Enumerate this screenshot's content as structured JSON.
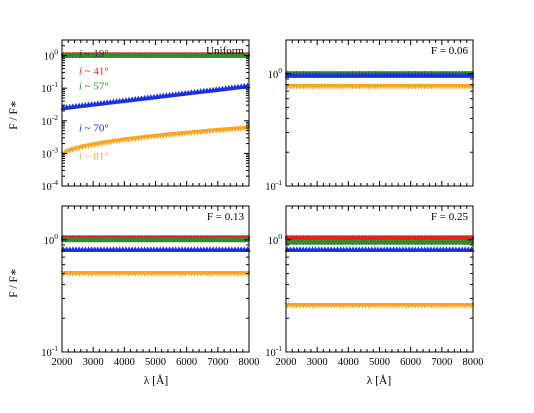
{
  "figure": {
    "ylabel_top": "F / F∗",
    "ylabel_bottom": "F / F∗",
    "xlabel": "λ [Å]"
  },
  "chart_data": [
    {
      "type": "line",
      "panel": "top-left",
      "annotation": "Uniform",
      "xlim": [
        2000,
        8000
      ],
      "ylim": [
        0.0001,
        3
      ],
      "yscale": "log",
      "xticks": [
        "2000",
        "3000",
        "4000",
        "5000",
        "6000",
        "7000",
        "8000"
      ],
      "xticks_shown": false,
      "yticks": [
        {
          "value": 1,
          "label": "10^0"
        },
        {
          "value": 0.1,
          "label": "10^-1"
        },
        {
          "value": 0.01,
          "label": "10^-2"
        },
        {
          "value": 0.001,
          "label": "10^-3"
        },
        {
          "value": 0.0001,
          "label": "10^-4"
        }
      ],
      "series": [
        {
          "name": "i ~ 19°",
          "color": "#333333",
          "marker": "circle",
          "y0": 1.05,
          "y1": 1.05
        },
        {
          "name": "i ~ 41°",
          "color": "#e8201a",
          "marker": "circle",
          "y0": 1.05,
          "y1": 1.05
        },
        {
          "name": "i ~ 57°",
          "color": "#2e8b2e",
          "marker": "circle",
          "y0": 1.0,
          "y1": 1.0
        },
        {
          "name": "i ~ 70°",
          "color": "#1a2ee8",
          "marker": "triangle-up",
          "y0": 0.025,
          "y1": 0.12,
          "log_interp": true
        },
        {
          "name": "i ~ 81°",
          "color": "#f5a623",
          "marker": "triangle-down",
          "y0": 0.0008,
          "y1": 0.006,
          "log_interp": true,
          "curve": "sqrt"
        }
      ]
    },
    {
      "type": "line",
      "panel": "top-right",
      "annotation": "F = 0.06",
      "xlim": [
        2000,
        8000
      ],
      "ylim": [
        0.1,
        2
      ],
      "yscale": "log",
      "xticks": [
        "2000",
        "3000",
        "4000",
        "5000",
        "6000",
        "7000",
        "8000"
      ],
      "xticks_shown": false,
      "yticks": [
        {
          "value": 1,
          "label": "10^0"
        },
        {
          "value": 0.1,
          "label": "10^-1"
        }
      ],
      "series": [
        {
          "color": "#333333",
          "marker": "circle",
          "y0": 1.0,
          "y1": 1.0
        },
        {
          "color": "#e8201a",
          "marker": "circle",
          "y0": 1.0,
          "y1": 1.0
        },
        {
          "color": "#2e8b2e",
          "marker": "circle",
          "y0": 1.0,
          "y1": 1.0
        },
        {
          "color": "#1a2ee8",
          "marker": "triangle-up",
          "y0": 0.97,
          "y1": 0.97
        },
        {
          "color": "#f5a623",
          "marker": "triangle-down",
          "y0": 0.77,
          "y1": 0.77
        }
      ]
    },
    {
      "type": "line",
      "panel": "bottom-left",
      "annotation": "F = 0.13",
      "xlim": [
        2000,
        8000
      ],
      "ylim": [
        0.1,
        2
      ],
      "yscale": "log",
      "xticks": [
        "2000",
        "3000",
        "4000",
        "5000",
        "6000",
        "7000",
        "8000"
      ],
      "xticks_shown": true,
      "yticks": [
        {
          "value": 1,
          "label": "10^0"
        },
        {
          "value": 0.1,
          "label": "10^-1"
        }
      ],
      "series": [
        {
          "color": "#333333",
          "marker": "circle",
          "y0": 1.04,
          "y1": 1.04
        },
        {
          "color": "#e8201a",
          "marker": "circle",
          "y0": 1.04,
          "y1": 1.04
        },
        {
          "color": "#2e8b2e",
          "marker": "circle",
          "y0": 1.0,
          "y1": 1.0
        },
        {
          "color": "#1a2ee8",
          "marker": "triangle-up",
          "y0": 0.82,
          "y1": 0.82
        },
        {
          "color": "#f5a623",
          "marker": "triangle-down",
          "y0": 0.5,
          "y1": 0.5
        }
      ]
    },
    {
      "type": "line",
      "panel": "bottom-right",
      "annotation": "F = 0.25",
      "xlim": [
        2000,
        8000
      ],
      "ylim": [
        0.1,
        2
      ],
      "yscale": "log",
      "xticks": [
        "2000",
        "3000",
        "4000",
        "5000",
        "6000",
        "7000",
        "8000"
      ],
      "xticks_shown": true,
      "yticks": [
        {
          "value": 1,
          "label": "10^0"
        },
        {
          "value": 0.1,
          "label": "10^-1"
        }
      ],
      "series": [
        {
          "color": "#333333",
          "marker": "circle",
          "y0": 1.04,
          "y1": 1.04
        },
        {
          "color": "#e8201a",
          "marker": "circle",
          "y0": 1.04,
          "y1": 1.04
        },
        {
          "color": "#2e8b2e",
          "marker": "circle",
          "y0": 0.95,
          "y1": 0.95
        },
        {
          "color": "#1a2ee8",
          "marker": "triangle-up",
          "y0": 0.82,
          "y1": 0.82
        },
        {
          "color": "#f5a623",
          "marker": "triangle-down",
          "y0": 0.26,
          "y1": 0.26
        }
      ]
    }
  ]
}
